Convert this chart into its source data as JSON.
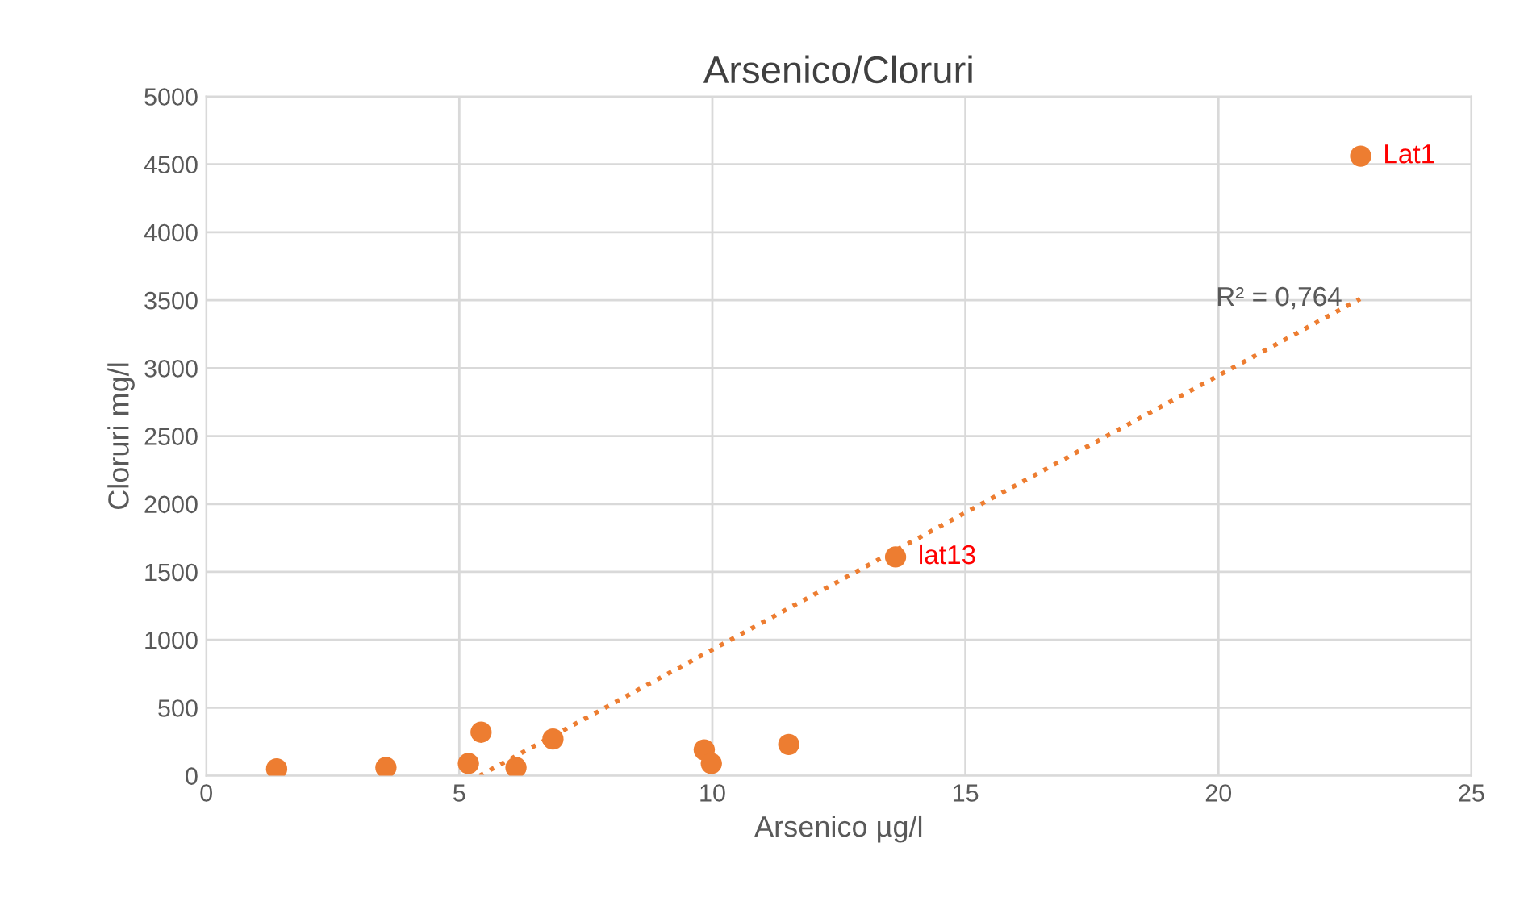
{
  "chart_data": {
    "type": "scatter",
    "title": "Arsenico/Cloruri",
    "xlabel": "Arsenico µg/l",
    "ylabel": "Cloruri mg/l",
    "xlim": [
      0,
      25
    ],
    "xticks": [
      0,
      5,
      10,
      15,
      20,
      25
    ],
    "ylim": [
      0,
      5000
    ],
    "yticks": [
      0,
      500,
      1000,
      1500,
      2000,
      2500,
      3000,
      3500,
      4000,
      4500,
      5000
    ],
    "grid": true,
    "series": [
      {
        "marker": "circle",
        "color": "#ed7d31",
        "x": [
          1.39,
          3.55,
          5.18,
          5.43,
          6.12,
          6.85,
          9.84,
          9.98,
          11.51,
          13.62,
          22.81
        ],
        "values": [
          50,
          60,
          90,
          320,
          60,
          270,
          190,
          90,
          230,
          1610,
          4560
        ],
        "value_labels": [
          null,
          null,
          null,
          null,
          null,
          null,
          null,
          null,
          null,
          "lat13",
          "Lat1"
        ]
      },
      {
        "type": "line",
        "color": "#ed7d31",
        "line_style": "dotted",
        "marker": "none",
        "x": [
          5.4,
          22.8
        ],
        "values": [
          0,
          3510
        ]
      }
    ],
    "annotations": [
      {
        "text": "R² = 0,764",
        "x": 22.8,
        "y": 3510
      }
    ]
  }
}
